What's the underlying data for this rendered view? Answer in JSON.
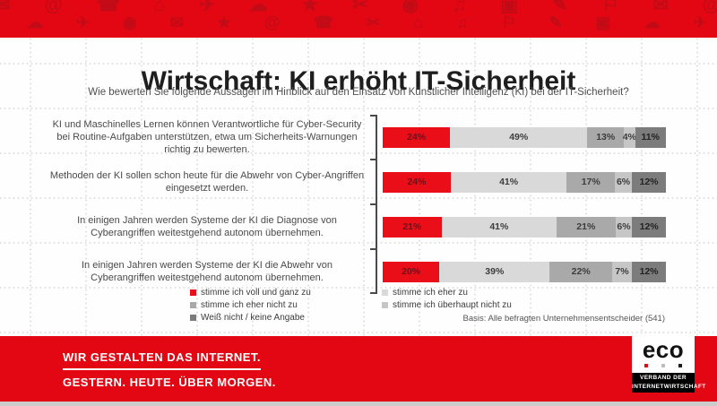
{
  "banner": {
    "pattern_row1": "✉ @ ☎ ⌂ ✈ ☁ ★ ✂ ◉ ♫ ▣ ✎ ⚐ ✉ @ ☎ ☁ ★ ✈ ◉",
    "pattern_row2": "▣ ☁ ✈ ◉ ✉ ★ @ ☎ ✂ ⌂ ♫ ⚐ ✎ ▣ ☁ ✈ ✉ @ ★ ☎"
  },
  "header": {
    "title": "Wirtschaft: KI erhöht IT-Sicherheit",
    "subtitle": "Wie bewerten Sie folgende Aussagen im Hinblick auf den Einsatz von Künstlicher Intelligenz (KI) bei der IT-Sicherheit?"
  },
  "chart_data": {
    "type": "bar",
    "orientation": "horizontal-stacked",
    "value_suffix": "%",
    "categories": [
      "KI und Maschinelles Lernen können Verantwortliche für Cyber-Security bei Routine-Aufgaben unterstützen, etwa um Sicherheits-Warnungen richtig zu bewerten.",
      "Methoden der KI sollen schon heute für die Abwehr von Cyber-Angriffen eingesetzt werden.",
      "In einigen Jahren werden Systeme der KI die Diagnose von Cyberangriffen weitestgehend autonom übernehmen.",
      "In einigen Jahren werden Systeme der KI die Abwehr von Cyberangriffen weitestgehend autonom übernehmen."
    ],
    "series": [
      {
        "name": "stimme ich voll und ganz zu",
        "color": "#ea0e18",
        "label_color": "#70101a",
        "values": [
          24,
          24,
          21,
          20
        ]
      },
      {
        "name": "stimme ich eher zu",
        "color": "#d9d9d9",
        "label_color": "#3d3d3d",
        "values": [
          49,
          41,
          41,
          39
        ]
      },
      {
        "name": "stimme ich eher nicht zu",
        "color": "#a9a9a9",
        "label_color": "#3d3d3d",
        "values": [
          13,
          17,
          21,
          22
        ]
      },
      {
        "name": "stimme ich überhaupt nicht zu",
        "color": "#c6c6c6",
        "label_color": "#3d3d3d",
        "values": [
          4,
          6,
          6,
          7
        ]
      },
      {
        "name": "Weiß nicht /  keine Angabe",
        "color": "#7c7c7c",
        "label_color": "#222222",
        "values": [
          11,
          12,
          12,
          12
        ]
      }
    ],
    "legend_columns": [
      [
        0,
        2,
        4
      ],
      [
        1,
        3
      ]
    ],
    "legend_position": "bottom",
    "basis": "Basis: Alle befragten Unternehmensentscheider (541)"
  },
  "footer": {
    "line1": "WIR GESTALTEN DAS INTERNET.",
    "line2": "GESTERN. HEUTE. ÜBER MORGEN."
  },
  "logo": {
    "word": "eco",
    "sub1": "VERBAND DER",
    "sub2": "INTERNETWIRTSCHAFT",
    "dot_colors": [
      "#e30613",
      "#bcbcbc",
      "#1a1a1a"
    ]
  }
}
